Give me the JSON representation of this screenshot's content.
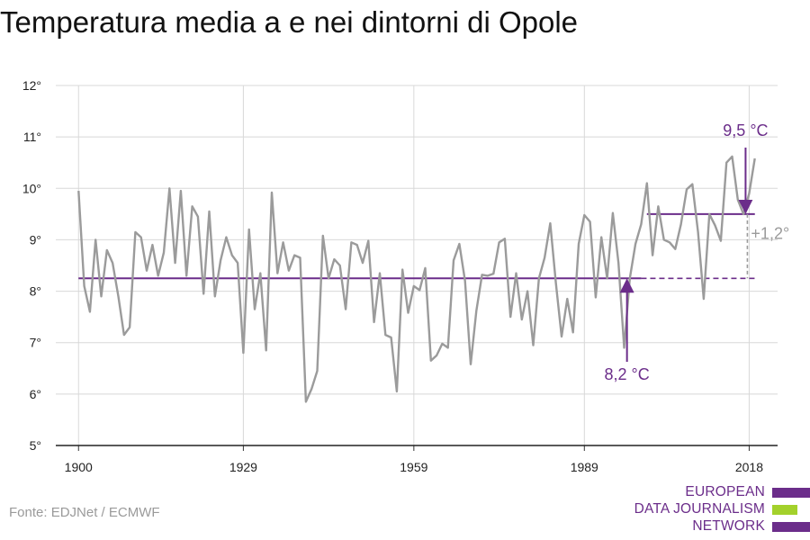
{
  "chart_data": {
    "type": "line",
    "title": "Temperatura media a e nei dintorni di Opole",
    "xlabel": "",
    "ylabel": "",
    "xlim": [
      1896,
      2023
    ],
    "ylim": [
      5,
      12
    ],
    "x_ticks": [
      1900,
      1929,
      1959,
      1989,
      2018
    ],
    "x_tick_labels": [
      "1900",
      "1929",
      "1959",
      "1989",
      "2018"
    ],
    "y_ticks": [
      5,
      6,
      7,
      8,
      9,
      10,
      11,
      12
    ],
    "y_tick_labels": [
      "5°",
      "6°",
      "7°",
      "8°",
      "9°",
      "10°",
      "11°",
      "12°"
    ],
    "grid": true,
    "series": [
      {
        "color": "#9b9b9b",
        "x": [
          1900,
          1901,
          1902,
          1903,
          1904,
          1905,
          1906,
          1907,
          1908,
          1909,
          1910,
          1911,
          1912,
          1913,
          1914,
          1915,
          1916,
          1917,
          1918,
          1919,
          1920,
          1921,
          1922,
          1923,
          1924,
          1925,
          1926,
          1927,
          1928,
          1929,
          1930,
          1931,
          1932,
          1933,
          1934,
          1935,
          1936,
          1937,
          1938,
          1939,
          1940,
          1941,
          1942,
          1943,
          1944,
          1945,
          1946,
          1947,
          1948,
          1949,
          1950,
          1951,
          1952,
          1953,
          1954,
          1955,
          1956,
          1957,
          1958,
          1959,
          1960,
          1961,
          1962,
          1963,
          1964,
          1965,
          1966,
          1967,
          1968,
          1969,
          1970,
          1971,
          1972,
          1973,
          1974,
          1975,
          1976,
          1977,
          1978,
          1979,
          1980,
          1981,
          1982,
          1983,
          1984,
          1985,
          1986,
          1987,
          1988,
          1989,
          1990,
          1991,
          1992,
          1993,
          1994,
          1995,
          1996,
          1997,
          1998,
          1999,
          2000,
          2001,
          2002,
          2003,
          2004,
          2005,
          2006,
          2007,
          2008,
          2009,
          2010,
          2011,
          2012,
          2013,
          2014,
          2015,
          2016,
          2017,
          2018,
          2019
        ],
        "y": [
          9.95,
          8.1,
          7.6,
          9.0,
          7.9,
          8.8,
          8.55,
          7.9,
          7.15,
          7.3,
          9.15,
          9.05,
          8.4,
          8.9,
          8.3,
          8.75,
          10.0,
          8.55,
          9.95,
          8.3,
          9.65,
          9.45,
          7.95,
          9.55,
          7.9,
          8.6,
          9.05,
          8.7,
          8.55,
          6.8,
          9.2,
          7.65,
          8.35,
          6.85,
          9.92,
          8.35,
          8.95,
          8.4,
          8.7,
          8.65,
          5.85,
          6.1,
          6.45,
          9.08,
          8.25,
          8.62,
          8.5,
          7.65,
          8.95,
          8.9,
          8.55,
          8.98,
          7.4,
          8.35,
          7.15,
          7.1,
          6.05,
          8.42,
          7.58,
          8.1,
          8.02,
          8.45,
          6.65,
          6.75,
          6.98,
          6.9,
          8.6,
          8.92,
          8.2,
          6.58,
          7.62,
          8.32,
          8.3,
          8.34,
          8.95,
          9.02,
          7.5,
          8.35,
          7.45,
          8.0,
          6.95,
          8.25,
          8.65,
          9.32,
          8.15,
          7.12,
          7.85,
          7.2,
          8.92,
          9.48,
          9.35,
          7.88,
          9.05,
          8.25,
          9.52,
          8.55,
          6.9,
          8.25,
          8.92,
          9.3,
          10.1,
          8.7,
          9.65,
          9.0,
          8.95,
          8.82,
          9.3,
          9.98,
          10.08,
          9.15,
          7.85,
          9.5,
          9.28,
          8.98,
          10.5,
          10.62,
          9.78,
          9.5,
          9.9,
          10.58
        ]
      }
    ],
    "reference_lines": [
      {
        "label": "8,2 °C",
        "value": 8.25,
        "x_from": 1900,
        "x_to": 2019,
        "solid_to": 1999,
        "color": "#6b2d8a"
      },
      {
        "label": "9,5 °C",
        "value": 9.5,
        "x_from": 2000,
        "x_to": 2019,
        "color": "#6b2d8a"
      }
    ],
    "annotations": {
      "mean_before": "8,2 °C",
      "mean_after": "9,5 °C",
      "difference": "+1,2°"
    }
  },
  "source_text": "Fonte: EDJNet / ECMWF",
  "logo": {
    "lines": [
      "EUROPEAN",
      "DATA JOURNALISM",
      "NETWORK"
    ],
    "colors": {
      "purple": "#6b2d8a",
      "green": "#a3d12b"
    }
  }
}
